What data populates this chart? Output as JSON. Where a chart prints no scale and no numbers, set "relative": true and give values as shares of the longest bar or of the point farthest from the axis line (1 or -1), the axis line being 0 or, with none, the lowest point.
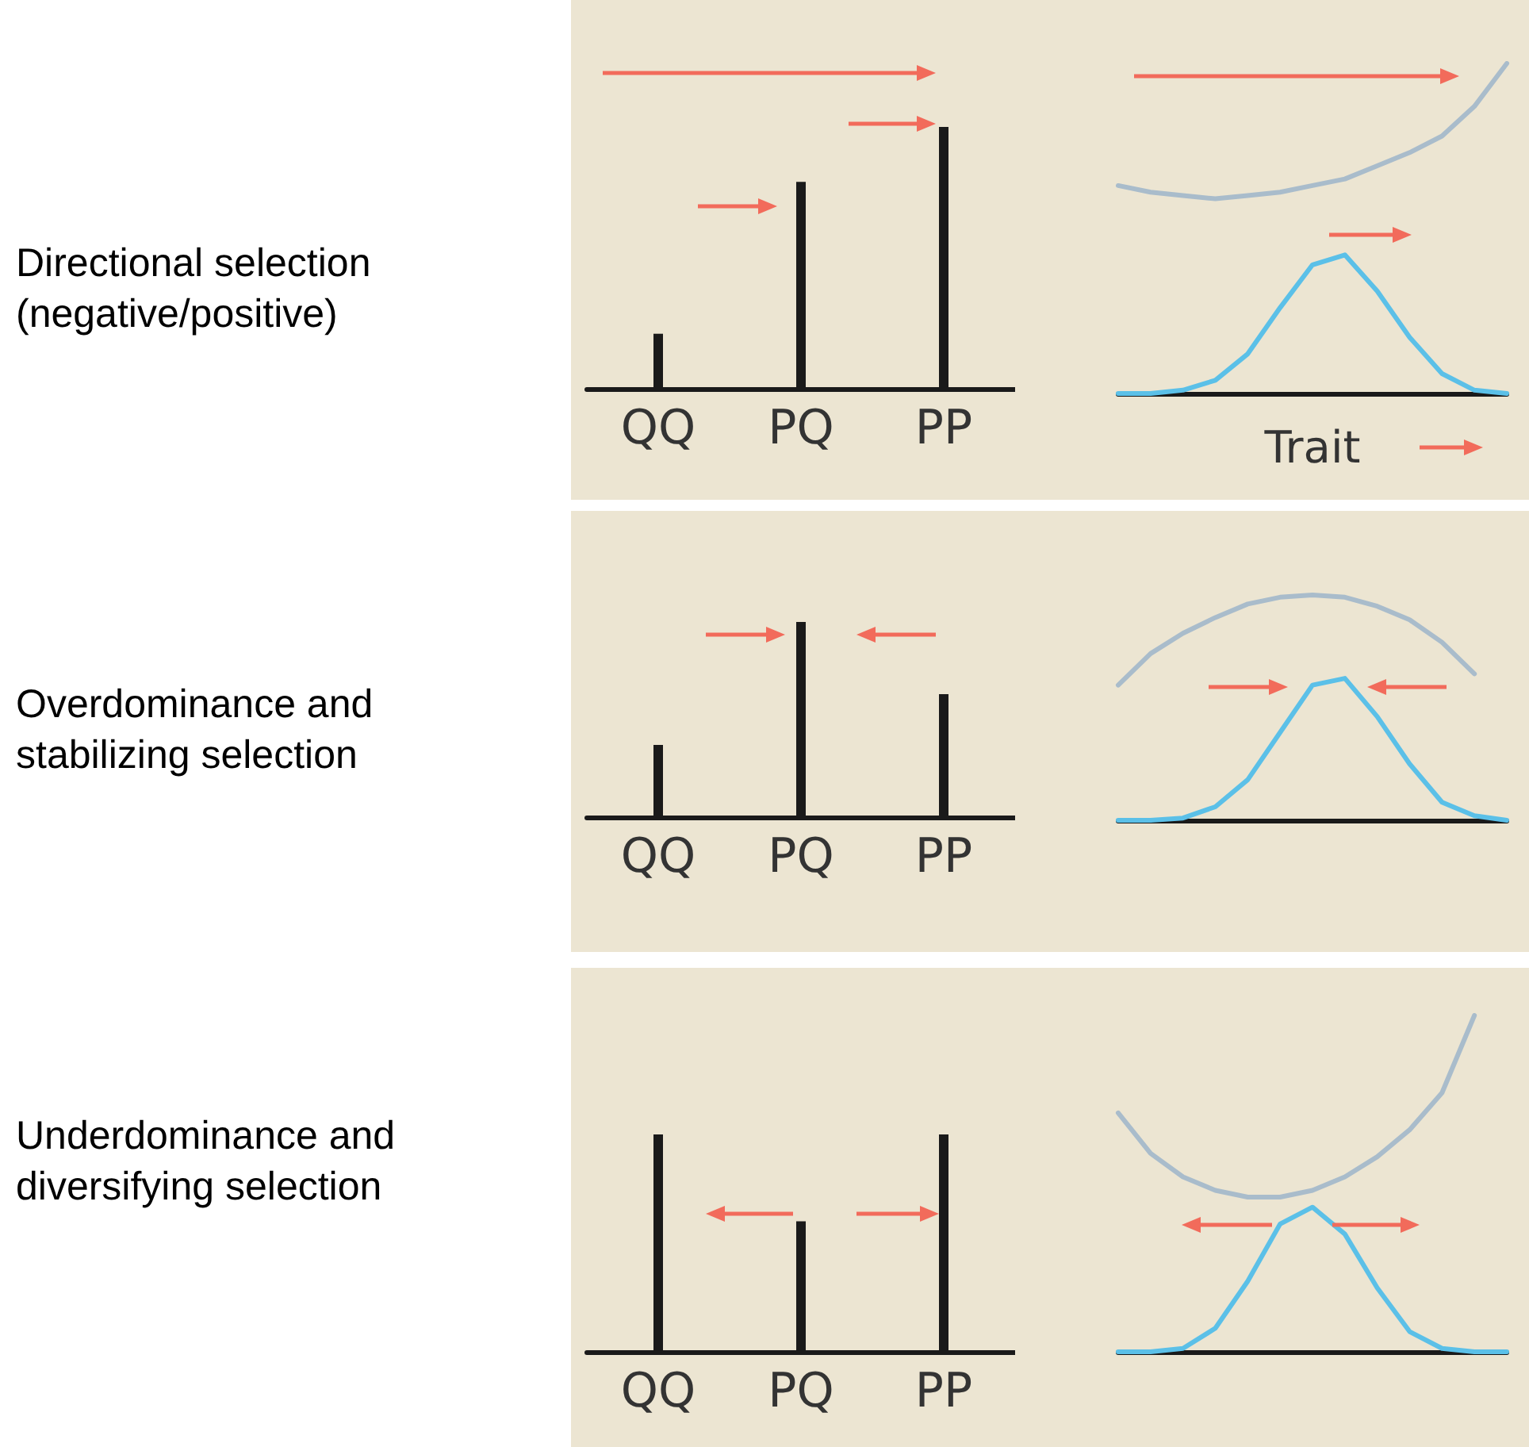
{
  "chart_data": [
    {
      "type": "bar",
      "title": "Directional selection (negative/positive)",
      "categories": [
        "QQ",
        "PQ",
        "PP"
      ],
      "values": [
        0.21,
        0.79,
        1
      ],
      "color": "#1a1a1a",
      "relative": true,
      "tick_labels": "x"
    },
    {
      "type": "line",
      "xlabel": "Trait",
      "categories": [
        null,
        null,
        null,
        null,
        null,
        null,
        null,
        null,
        null,
        null,
        null,
        null,
        null
      ],
      "relative": true,
      "tick_labels": false,
      "marker": "none",
      "series": [
        {
          "color": "#a9bccb",
          "values": [
            0.63,
            0.61,
            0.6,
            0.59,
            0.6,
            0.61,
            0.63,
            0.65,
            0.69,
            0.73,
            0.78,
            0.87,
            1
          ]
        },
        {
          "color": "#5bc0e8",
          "values": [
            0,
            0,
            0.01,
            0.04,
            0.12,
            0.26,
            0.39,
            0.42,
            0.31,
            0.17,
            0.06,
            0.01,
            0
          ]
        }
      ]
    },
    {
      "type": "bar",
      "title": "Overdominance and stabilizing selection",
      "categories": [
        "QQ",
        "PQ",
        "PP"
      ],
      "values": [
        0.37,
        1,
        0.63
      ],
      "color": "#1a1a1a",
      "relative": true,
      "tick_labels": "x"
    },
    {
      "type": "line",
      "categories": [
        null,
        null,
        null,
        null,
        null,
        null,
        null,
        null,
        null,
        null,
        null,
        null,
        null
      ],
      "relative": true,
      "tick_labels": false,
      "marker": "none",
      "series": [
        {
          "color": "#a9bccb",
          "values": [
            0.6,
            0.74,
            0.83,
            0.9,
            0.96,
            0.99,
            1,
            0.99,
            0.95,
            0.89,
            0.79,
            0.65,
            null
          ]
        },
        {
          "color": "#5bc0e8",
          "values": [
            0,
            0,
            0.01,
            0.06,
            0.18,
            0.39,
            0.6,
            0.63,
            0.46,
            0.25,
            0.08,
            0.02,
            0
          ]
        }
      ]
    },
    {
      "type": "bar",
      "title": "Underdominance and diversifying selection",
      "categories": [
        "QQ",
        "PQ",
        "PP"
      ],
      "values": [
        1,
        0.6,
        1
      ],
      "color": "#1a1a1a",
      "relative": true,
      "tick_labels": "x"
    },
    {
      "type": "line",
      "categories": [
        null,
        null,
        null,
        null,
        null,
        null,
        null,
        null,
        null,
        null,
        null,
        null,
        null
      ],
      "relative": true,
      "tick_labels": false,
      "marker": "none",
      "series": [
        {
          "color": "#a9bccb",
          "values": [
            0.71,
            0.59,
            0.52,
            0.48,
            0.46,
            0.46,
            0.48,
            0.52,
            0.58,
            0.66,
            0.77,
            1,
            null
          ]
        },
        {
          "color": "#5bc0e8",
          "values": [
            0,
            0,
            0.01,
            0.07,
            0.21,
            0.38,
            0.43,
            0.35,
            0.19,
            0.06,
            0.01,
            0,
            0
          ]
        }
      ]
    }
  ]
}
